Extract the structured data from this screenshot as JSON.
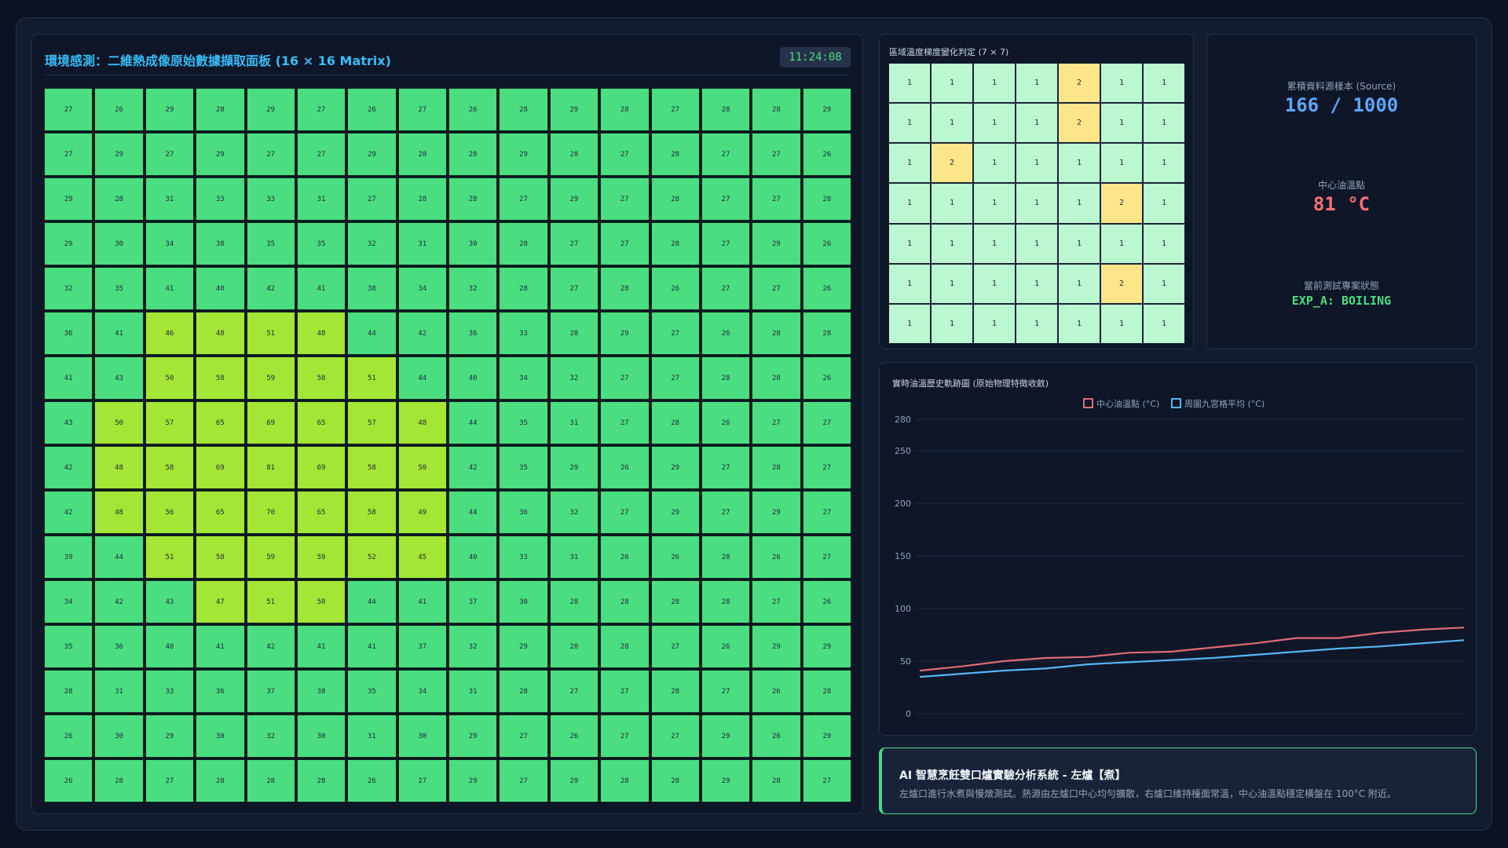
{
  "matrix_panel": {
    "title": "環境感測：二維熱成像原始數據擷取面板 (16 × 16 Matrix)",
    "clock": "11:24:08",
    "matrix": [
      [
        27,
        26,
        29,
        28,
        29,
        27,
        26,
        27,
        26,
        28,
        29,
        28,
        27,
        28,
        28,
        29
      ],
      [
        27,
        29,
        27,
        29,
        27,
        27,
        29,
        28,
        28,
        29,
        28,
        27,
        28,
        27,
        27,
        26
      ],
      [
        29,
        28,
        31,
        33,
        33,
        31,
        27,
        28,
        28,
        27,
        29,
        27,
        28,
        27,
        27,
        28
      ],
      [
        29,
        30,
        34,
        38,
        35,
        35,
        32,
        31,
        30,
        28,
        27,
        27,
        28,
        27,
        29,
        26
      ],
      [
        32,
        35,
        41,
        40,
        42,
        41,
        38,
        34,
        32,
        28,
        27,
        28,
        26,
        27,
        27,
        26
      ],
      [
        36,
        41,
        46,
        48,
        51,
        48,
        44,
        42,
        36,
        33,
        28,
        29,
        27,
        26,
        28,
        28
      ],
      [
        41,
        43,
        50,
        58,
        59,
        58,
        51,
        44,
        40,
        34,
        32,
        27,
        27,
        28,
        28,
        26
      ],
      [
        43,
        50,
        57,
        65,
        69,
        65,
        57,
        48,
        44,
        35,
        31,
        27,
        28,
        26,
        27,
        27
      ],
      [
        42,
        48,
        58,
        69,
        81,
        69,
        58,
        50,
        42,
        35,
        29,
        26,
        29,
        27,
        28,
        27
      ],
      [
        42,
        48,
        56,
        65,
        70,
        65,
        58,
        49,
        44,
        36,
        32,
        27,
        29,
        27,
        29,
        27
      ],
      [
        39,
        44,
        51,
        58,
        59,
        59,
        52,
        45,
        40,
        33,
        31,
        26,
        26,
        28,
        26,
        27
      ],
      [
        34,
        42,
        43,
        47,
        51,
        50,
        44,
        41,
        37,
        30,
        28,
        28,
        28,
        28,
        27,
        26
      ],
      [
        35,
        36,
        40,
        41,
        42,
        41,
        41,
        37,
        32,
        29,
        28,
        28,
        27,
        26,
        29,
        29
      ],
      [
        28,
        31,
        33,
        36,
        37,
        38,
        35,
        34,
        31,
        28,
        27,
        27,
        28,
        27,
        26,
        28
      ],
      [
        26,
        30,
        29,
        30,
        32,
        30,
        31,
        30,
        29,
        27,
        26,
        27,
        27,
        29,
        26,
        29
      ],
      [
        26,
        28,
        27,
        28,
        28,
        28,
        26,
        27,
        29,
        27,
        29,
        28,
        28,
        29,
        28,
        27
      ]
    ],
    "colors": {
      "cool": "#4ade80",
      "warm": "#a3e635"
    }
  },
  "gradient_panel": {
    "title": "區域溫度梯度變化判定 (7 × 7)",
    "matrix": [
      [
        1,
        1,
        1,
        1,
        2,
        1,
        1
      ],
      [
        1,
        1,
        1,
        1,
        2,
        1,
        1
      ],
      [
        1,
        2,
        1,
        1,
        1,
        1,
        1
      ],
      [
        1,
        1,
        1,
        1,
        1,
        2,
        1
      ],
      [
        1,
        1,
        1,
        1,
        1,
        1,
        1
      ],
      [
        1,
        1,
        1,
        1,
        1,
        2,
        1
      ],
      [
        1,
        1,
        1,
        1,
        1,
        1,
        1
      ]
    ],
    "colors": {
      "level1": "#bbf7d0",
      "level2": "#fde68a"
    }
  },
  "stats": {
    "source_label": "累積資料源樣本 (Source)",
    "source_value": "166 / 1000",
    "center_label": "中心油溫點",
    "center_value": "81 °C",
    "status_label": "當前測試專案狀態",
    "status_value": "EXP_A: BOILING",
    "colors": {
      "source": "#60a5fa",
      "center": "#f87171",
      "status": "#4ade80"
    }
  },
  "chart_data": {
    "type": "line",
    "title": "實時油溫歷史軌跡圖 (原始物理特徵收斂)",
    "ylim": [
      0,
      280
    ],
    "yticks": [
      0,
      50,
      100,
      150,
      200,
      250,
      280
    ],
    "grid": true,
    "legend_position": "top-center",
    "series": [
      {
        "name": "中心油溫點 (°C)",
        "color": "#e06c75",
        "values": [
          41,
          45,
          50,
          53,
          54,
          58,
          59,
          63,
          67,
          72,
          72,
          77,
          80,
          82
        ]
      },
      {
        "name": "周圍九宮格平均 (°C)",
        "color": "#56b6f2",
        "values": [
          35,
          38,
          41,
          43,
          47,
          49,
          51,
          53,
          56,
          59,
          62,
          64,
          67,
          70
        ]
      }
    ]
  },
  "footer": {
    "title": "AI 智慧烹飪雙口爐實驗分析系統 - 左爐【煮】",
    "description": "左爐口進行水煮與慢燉測試。熱源由左爐口中心均勻擴散，右爐口維持檯面常溫，中心油溫點穩定橫盤在 100°C 附近。"
  }
}
